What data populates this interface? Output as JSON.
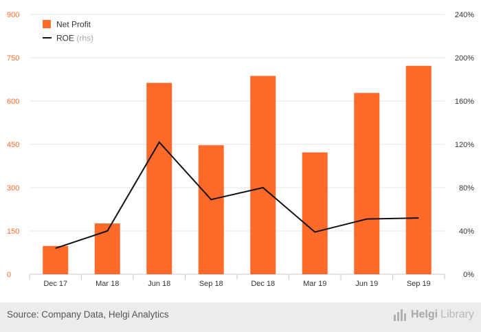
{
  "chart_data": {
    "type": "bar",
    "categories": [
      "Dec 17",
      "Mar 18",
      "Jun 18",
      "Sep 18",
      "Dec 18",
      "Mar 19",
      "Jun 19",
      "Sep 19"
    ],
    "series": [
      {
        "name": "Net Profit",
        "type": "bar",
        "axis": "left",
        "color": "#ff6a2a",
        "values": [
          98,
          176,
          663,
          447,
          687,
          422,
          628,
          722
        ]
      },
      {
        "name": "ROE",
        "name_suffix": "(rhs)",
        "type": "line",
        "axis": "right",
        "color": "#111111",
        "values": [
          0.24,
          0.4,
          1.22,
          0.69,
          0.8,
          0.39,
          0.51,
          0.52
        ]
      }
    ],
    "y_left": {
      "min": 0,
      "max": 900,
      "ticks": [
        "0",
        "150",
        "300",
        "450",
        "600",
        "750",
        "900"
      ],
      "color": "#ff6a2a"
    },
    "y_right": {
      "min": 0,
      "max": 2.4,
      "ticks": [
        "0%",
        "40%",
        "80%",
        "120%",
        "160%",
        "200%",
        "240%"
      ]
    },
    "legend_position": "top-left",
    "grid": true
  },
  "footer": {
    "source": "Source: Company Data, Helgi Analytics",
    "brand_helgi": "Helgi",
    "brand_library": "Library",
    "brand_icon": "bar-chart-icon"
  }
}
